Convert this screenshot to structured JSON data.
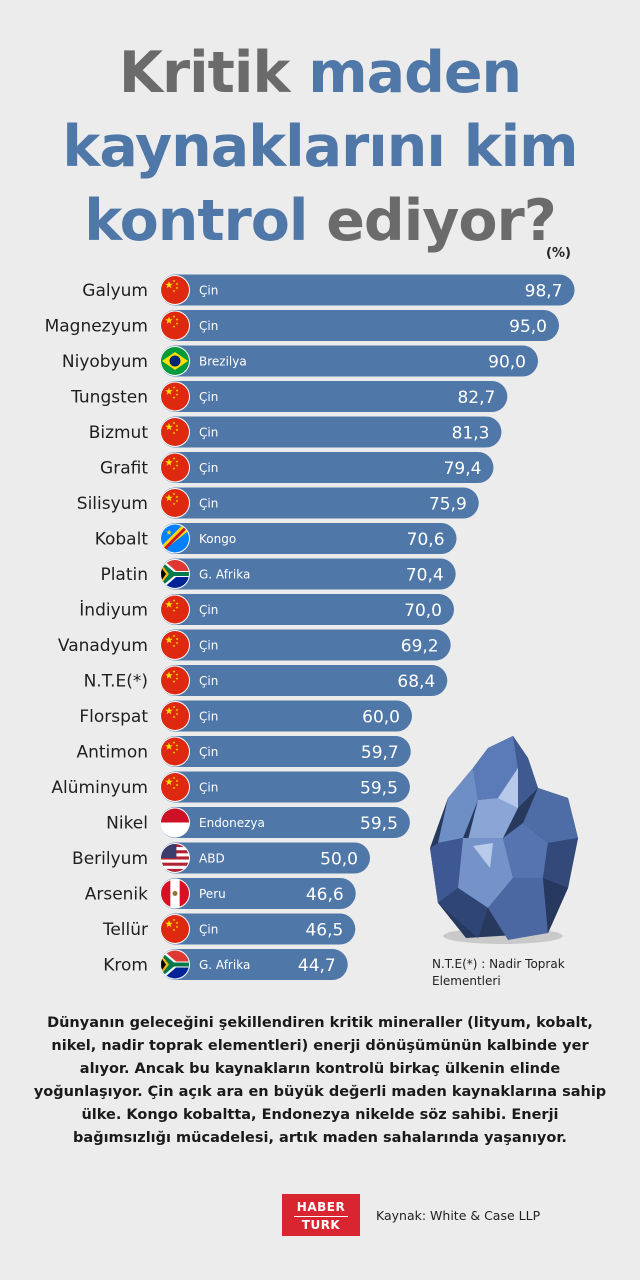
{
  "title": {
    "part1": "Kritik",
    "part2": "maden",
    "part3": "kaynaklarını kim",
    "part4": "kontrol",
    "part5": "ediyor?"
  },
  "unit_label": "(%)",
  "chart_data": {
    "type": "bar",
    "orientation": "horizontal",
    "title": "Kritik maden kaynaklarını kim kontrol ediyor?",
    "unit": "%",
    "xlim": [
      0,
      100
    ],
    "categories": [
      "Galyum",
      "Magnezyum",
      "Niyobyum",
      "Tungsten",
      "Bizmut",
      "Grafit",
      "Silisyum",
      "Kobalt",
      "Platin",
      "İndiyum",
      "Vanadyum",
      "N.T.E(*)",
      "Florspat",
      "Antimon",
      "Alüminyum",
      "Nikel",
      "Berilyum",
      "Arsenik",
      "Tellür",
      "Krom"
    ],
    "countries": [
      "Çin",
      "Çin",
      "Brezilya",
      "Çin",
      "Çin",
      "Çin",
      "Çin",
      "Kongo",
      "G. Afrika",
      "Çin",
      "Çin",
      "Çin",
      "Çin",
      "Çin",
      "Çin",
      "Endonezya",
      "ABD",
      "Peru",
      "Çin",
      "G. Afrika"
    ],
    "values": [
      98.7,
      95.0,
      90.0,
      82.7,
      81.3,
      79.4,
      75.9,
      70.6,
      70.4,
      70.0,
      69.2,
      68.4,
      60.0,
      59.7,
      59.5,
      59.5,
      50.0,
      46.6,
      46.5,
      44.7
    ],
    "value_labels": [
      "98,7",
      "95,0",
      "90,0",
      "82,7",
      "81,3",
      "79,4",
      "75,9",
      "70,6",
      "70,4",
      "70,0",
      "69,2",
      "68,4",
      "60,0",
      "59,7",
      "59,5",
      "59,5",
      "50,0",
      "46,6",
      "46,5",
      "44,7"
    ],
    "flags": [
      "china",
      "china",
      "brazil",
      "china",
      "china",
      "china",
      "china",
      "drc",
      "south-africa",
      "china",
      "china",
      "china",
      "china",
      "china",
      "china",
      "indonesia",
      "usa",
      "peru",
      "china",
      "south-africa"
    ]
  },
  "colors": {
    "bar": "#4f77a8",
    "title_gray": "#6b6b6b",
    "title_blue": "#4f77a8",
    "background": "#ececec",
    "logo_red": "#d9252f"
  },
  "note": "N.T.E(*) : Nadir Toprak Elementleri",
  "description": "Dünyanın geleceğini şekillendiren kritik mineraller (lityum, kobalt, nikel, nadir toprak elementleri) enerji dönüşümünün kalbinde yer alıyor. Ancak bu kaynakların kontrolü birkaç ülkenin elinde yoğunlaşıyor. Çin açık ara en büyük değerli maden kaynaklarına sahip ülke. Kongo kobaltta, Endonezya nikelde söz sahibi. Enerji bağımsızlığı mücadelesi, artık maden sahalarında yaşanıyor.",
  "logo": {
    "top": "HABER",
    "bottom": "TURK"
  },
  "source": "Kaynak: White & Case LLP"
}
